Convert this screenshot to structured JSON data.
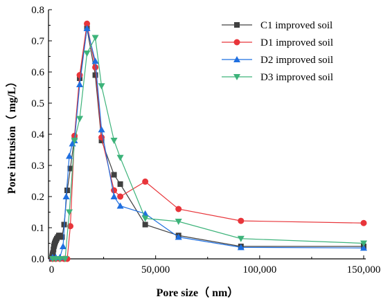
{
  "chart_data": {
    "type": "line",
    "xlabel": "Pore size（ nm）",
    "ylabel": "Pore intrusion（ mg/L）",
    "xlim": [
      -1500,
      151000
    ],
    "ylim": [
      0,
      0.8
    ],
    "xticks": [
      0,
      50000,
      100000,
      150000
    ],
    "xtick_labels": [
      "0",
      "50,000",
      "100,000",
      "150,000"
    ],
    "yticks": [
      0.0,
      0.1,
      0.2,
      0.3,
      0.4,
      0.5,
      0.6,
      0.7,
      0.8
    ],
    "ytick_labels": [
      "0.0",
      "0.1",
      "0.2",
      "0.3",
      "0.4",
      "0.5",
      "0.6",
      "0.7",
      "0.8"
    ],
    "grid": false,
    "legend_position": "top-right",
    "series": [
      {
        "name": "C1 improved soil",
        "color": "#404040",
        "marker": "square",
        "x": [
          80,
          200,
          350,
          500,
          700,
          900,
          1100,
          1300,
          1500,
          1800,
          2100,
          2500,
          3000,
          3500,
          4000,
          5000,
          6000,
          7500,
          9000,
          11000,
          13500,
          17000,
          21000,
          24000,
          30000,
          33000,
          45000,
          61000,
          91000,
          150000
        ],
        "y": [
          0.0,
          0.005,
          0.01,
          0.015,
          0.02,
          0.03,
          0.04,
          0.045,
          0.05,
          0.055,
          0.06,
          0.065,
          0.07,
          0.075,
          0.075,
          0.07,
          0.11,
          0.22,
          0.29,
          0.39,
          0.58,
          0.74,
          0.59,
          0.38,
          0.27,
          0.24,
          0.11,
          0.075,
          0.04,
          0.04
        ]
      },
      {
        "name": "D1 improved soil",
        "color": "#e8353a",
        "marker": "circle",
        "x": [
          500,
          2000,
          4000,
          6000,
          7500,
          9000,
          11000,
          13500,
          17000,
          21000,
          24000,
          30000,
          33000,
          45000,
          61000,
          91000,
          150000
        ],
        "y": [
          0.0,
          0.0,
          0.0,
          0.0,
          0.0,
          0.105,
          0.395,
          0.59,
          0.755,
          0.615,
          0.39,
          0.22,
          0.2,
          0.248,
          0.16,
          0.122,
          0.115
        ]
      },
      {
        "name": "D2 improved soil",
        "color": "#1f6fe0",
        "marker": "triangle-up",
        "x": [
          500,
          2000,
          4000,
          5500,
          7000,
          8500,
          10000,
          11000,
          13500,
          17000,
          21000,
          24000,
          30000,
          33000,
          45000,
          61000,
          91000,
          150000
        ],
        "y": [
          0.005,
          0.005,
          0.005,
          0.04,
          0.2,
          0.33,
          0.37,
          0.38,
          0.56,
          0.74,
          0.635,
          0.415,
          0.2,
          0.17,
          0.145,
          0.07,
          0.037,
          0.035
        ]
      },
      {
        "name": "D3 improved soil",
        "color": "#3db37a",
        "marker": "triangle-down",
        "x": [
          500,
          2000,
          4000,
          6500,
          8500,
          11000,
          13500,
          17000,
          21000,
          24000,
          30000,
          33000,
          45000,
          61000,
          91000,
          150000
        ],
        "y": [
          0.0,
          0.0,
          0.0,
          0.0,
          0.15,
          0.38,
          0.45,
          0.66,
          0.71,
          0.555,
          0.38,
          0.325,
          0.13,
          0.12,
          0.065,
          0.05
        ]
      }
    ]
  }
}
